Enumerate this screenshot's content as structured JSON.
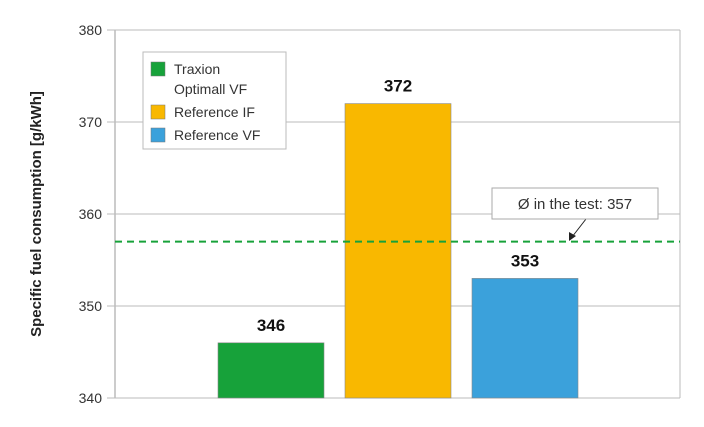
{
  "chart_data": {
    "type": "bar",
    "title": "",
    "xlabel": "",
    "ylabel": "Specific fuel consumption [g/kWh]",
    "ylim": [
      340,
      380
    ],
    "yticks": [
      340,
      350,
      360,
      370,
      380
    ],
    "grid": true,
    "legend_position": "top-left",
    "categories": [
      "Traxion Optimall VF",
      "Reference IF",
      "Reference VF"
    ],
    "legend": [
      {
        "label_lines": [
          "Traxion",
          "Optimall VF"
        ],
        "color": "#17a23a"
      },
      {
        "label_lines": [
          "Reference IF"
        ],
        "color": "#f9b800"
      },
      {
        "label_lines": [
          "Reference VF"
        ],
        "color": "#3ba1db"
      }
    ],
    "values": [
      346,
      372,
      353
    ],
    "data_labels": [
      "346",
      "372",
      "353"
    ],
    "colors": [
      "#17a23a",
      "#f9b800",
      "#3ba1db"
    ],
    "reference_line": {
      "value": 357,
      "color": "#17a23a",
      "style": "dashed",
      "annotation": "Ø in the test: 357"
    }
  }
}
